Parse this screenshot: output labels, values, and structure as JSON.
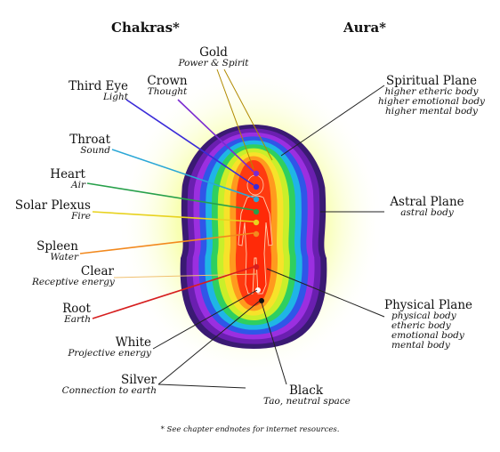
{
  "headers": {
    "chakras": "Chakras*",
    "aura": "Aura*"
  },
  "left_labels": [
    {
      "key": "gold",
      "name": "Gold",
      "desc": "Power & Spirit"
    },
    {
      "key": "crown",
      "name": "Crown",
      "desc": "Thought"
    },
    {
      "key": "third",
      "name": "Third Eye",
      "desc": "Light"
    },
    {
      "key": "throat",
      "name": "Throat",
      "desc": "Sound"
    },
    {
      "key": "heart",
      "name": "Heart",
      "desc": "Air"
    },
    {
      "key": "solar",
      "name": "Solar Plexus",
      "desc": "Fire"
    },
    {
      "key": "spleen",
      "name": "Spleen",
      "desc": "Water"
    },
    {
      "key": "clear",
      "name": "Clear",
      "desc": "Receptive energy"
    },
    {
      "key": "root",
      "name": "Root",
      "desc": "Earth"
    },
    {
      "key": "white",
      "name": "White",
      "desc": "Projective energy"
    },
    {
      "key": "silver",
      "name": "Silver",
      "desc": "Connection to earth"
    },
    {
      "key": "black",
      "name": "Black",
      "desc": "Tao, neutral space"
    }
  ],
  "right_labels": [
    {
      "key": "spiritual",
      "name": "Spiritual Plane",
      "lines": [
        "higher etheric body",
        "higher emotional body",
        "higher mental body"
      ]
    },
    {
      "key": "astral",
      "name": "Astral Plane",
      "lines": [
        "astral body"
      ]
    },
    {
      "key": "physical",
      "name": "Physical Plane",
      "lines": [
        "physical body",
        "etheric body",
        "emotional body",
        "mental body"
      ]
    }
  ],
  "colors": {
    "aura_layers": [
      "#3a1a73",
      "#6a1fb0",
      "#9b2fe0",
      "#2f56e8",
      "#1fb5e6",
      "#2fcf5f",
      "#c9ef2a",
      "#f7e22a",
      "#ff9a1e",
      "#ff3a10"
    ],
    "glow": "#f3ff7a",
    "gold": "#b08a00",
    "crown": "#7a2bd0",
    "third_eye": "#3a2bd8",
    "throat": "#2aa7d6",
    "heart": "#27a04a",
    "solar": "#e8d21e",
    "spleen": "#f2891e",
    "root": "#d61e1e",
    "body": "#ff5a1a"
  },
  "footnote": "* See chapter endnotes for internet resources."
}
